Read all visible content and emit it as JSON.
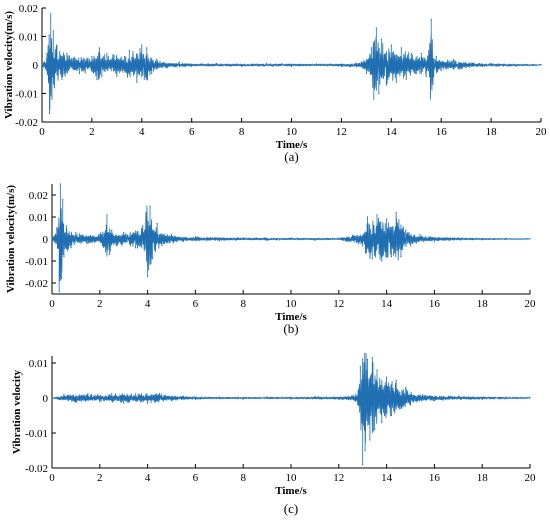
{
  "chart_data": [
    {
      "type": "line",
      "panel_label": "(a)",
      "xlabel": "Time/s",
      "ylabel": "Vibration velocity(m/s)",
      "xlim": [
        0,
        20
      ],
      "ylim": [
        -0.02,
        0.02
      ],
      "x_ticks": [
        0,
        2,
        4,
        6,
        8,
        10,
        12,
        14,
        16,
        18,
        20
      ],
      "y_ticks": [
        -0.02,
        -0.01,
        0,
        0.01,
        0.02
      ],
      "y_tick_labels": [
        "-0.02",
        "-0.01",
        "0",
        "0.01",
        "0.02"
      ],
      "grid": false,
      "line_color": "#1f6fb2",
      "series": [
        {
          "x": [
            0.0,
            0.2,
            0.3,
            0.35,
            0.4,
            0.45,
            0.5,
            0.6,
            0.8,
            1.0,
            1.5,
            2.0,
            2.2,
            2.3,
            2.4,
            2.6,
            3.0,
            3.5,
            3.8,
            4.0,
            4.1,
            4.2,
            4.4,
            4.6,
            5.0,
            5.5,
            6.0,
            7.0,
            8.0,
            9.0,
            10.0,
            11.0,
            12.0,
            12.8,
            13.0,
            13.2,
            13.3,
            13.4,
            13.5,
            13.6,
            13.8,
            14.0,
            14.2,
            14.4,
            14.6,
            14.8,
            15.0,
            15.2,
            15.4,
            15.5,
            15.6,
            15.7,
            15.8,
            16.0,
            16.5,
            17.0,
            18.0,
            19.0,
            20.0
          ],
          "y": [
            0.0,
            0.004,
            -0.017,
            0.018,
            -0.012,
            0.012,
            -0.008,
            0.007,
            -0.005,
            0.004,
            -0.003,
            0.003,
            -0.005,
            0.006,
            -0.004,
            0.004,
            -0.004,
            0.005,
            -0.006,
            0.007,
            -0.005,
            0.006,
            -0.003,
            0.002,
            -0.001,
            0.001,
            -0.0005,
            0.0005,
            -0.0005,
            0.0005,
            -0.0005,
            0.0004,
            -0.0005,
            0.001,
            -0.003,
            0.006,
            -0.012,
            0.013,
            -0.01,
            0.009,
            -0.007,
            0.007,
            -0.006,
            0.006,
            -0.005,
            0.004,
            -0.003,
            0.004,
            -0.004,
            0.005,
            0.016,
            -0.004,
            0.003,
            -0.002,
            0.002,
            -0.001,
            0.0006,
            -0.0004,
            0.0002
          ]
        }
      ]
    },
    {
      "type": "line",
      "panel_label": "(b)",
      "xlabel": "Time/s",
      "ylabel": "Vibration velocity(m/s)",
      "xlim": [
        0,
        20
      ],
      "ylim": [
        -0.025,
        0.025
      ],
      "x_ticks": [
        0,
        2,
        4,
        6,
        8,
        10,
        12,
        14,
        16,
        18,
        20
      ],
      "y_ticks": [
        -0.02,
        -0.01,
        0,
        0.01,
        0.02
      ],
      "y_tick_labels": [
        "-0.02",
        "-0.01",
        "0",
        "0.01",
        "0.02"
      ],
      "grid": false,
      "line_color": "#1f6fb2",
      "series": [
        {
          "x": [
            0.0,
            0.2,
            0.3,
            0.35,
            0.4,
            0.45,
            0.5,
            0.6,
            0.8,
            1.0,
            1.5,
            2.0,
            2.3,
            2.4,
            2.5,
            2.7,
            3.0,
            3.5,
            3.8,
            4.0,
            4.1,
            4.2,
            4.4,
            4.6,
            5.0,
            5.5,
            6.0,
            7.0,
            8.0,
            9.0,
            10.0,
            11.0,
            12.0,
            13.0,
            13.2,
            13.4,
            13.6,
            13.8,
            14.0,
            14.2,
            14.4,
            14.6,
            14.8,
            15.0,
            15.4,
            16.0,
            17.0,
            18.0,
            19.0,
            20.0
          ],
          "y": [
            0.0,
            0.005,
            -0.024,
            0.025,
            -0.018,
            0.018,
            -0.008,
            0.006,
            -0.004,
            0.003,
            -0.002,
            0.002,
            0.011,
            -0.007,
            0.004,
            -0.003,
            0.003,
            -0.004,
            0.006,
            -0.017,
            0.015,
            -0.009,
            0.007,
            -0.003,
            0.002,
            -0.001,
            0.001,
            -0.0008,
            0.0006,
            -0.0006,
            0.0005,
            -0.0005,
            0.0004,
            -0.003,
            0.01,
            -0.009,
            0.011,
            -0.01,
            0.009,
            -0.008,
            0.012,
            -0.008,
            0.004,
            -0.003,
            0.002,
            -0.001,
            0.0006,
            -0.0004,
            0.0003,
            0.0002
          ]
        }
      ]
    },
    {
      "type": "line",
      "panel_label": "(c)",
      "xlabel": "Time/s",
      "ylabel": "Vibration velocity",
      "xlim": [
        0,
        20
      ],
      "ylim": [
        -0.02,
        0.012
      ],
      "x_ticks": [
        0,
        2,
        4,
        6,
        8,
        10,
        12,
        14,
        16,
        18,
        20
      ],
      "y_ticks": [
        -0.02,
        -0.01,
        0,
        0.01
      ],
      "y_tick_labels": [
        "-0.02",
        "-0.01",
        "0",
        "0.01"
      ],
      "grid": false,
      "line_color": "#1f6fb2",
      "series": [
        {
          "x": [
            0.0,
            0.5,
            1.0,
            1.5,
            2.0,
            2.5,
            3.0,
            3.5,
            4.0,
            4.5,
            5.0,
            5.5,
            6.0,
            7.0,
            8.0,
            9.0,
            10.0,
            11.0,
            12.0,
            12.6,
            12.8,
            12.9,
            13.0,
            13.05,
            13.1,
            13.2,
            13.3,
            13.4,
            13.5,
            13.6,
            13.8,
            14.0,
            14.2,
            14.4,
            14.6,
            14.8,
            15.0,
            15.5,
            16.0,
            17.0,
            18.0,
            19.0,
            20.0
          ],
          "y": [
            0.0,
            0.001,
            -0.0012,
            0.0012,
            -0.001,
            0.0013,
            -0.0015,
            0.0012,
            -0.0015,
            0.0013,
            -0.0008,
            0.0005,
            -0.0004,
            0.0003,
            -0.0003,
            0.0003,
            -0.0003,
            0.0004,
            -0.0004,
            0.0008,
            -0.002,
            0.009,
            -0.019,
            0.01,
            -0.015,
            0.011,
            -0.012,
            0.0115,
            -0.009,
            0.008,
            -0.007,
            0.006,
            -0.005,
            0.005,
            -0.003,
            0.003,
            -0.002,
            0.001,
            -0.0008,
            0.0005,
            -0.0004,
            0.0003,
            0.0002
          ]
        }
      ]
    }
  ]
}
